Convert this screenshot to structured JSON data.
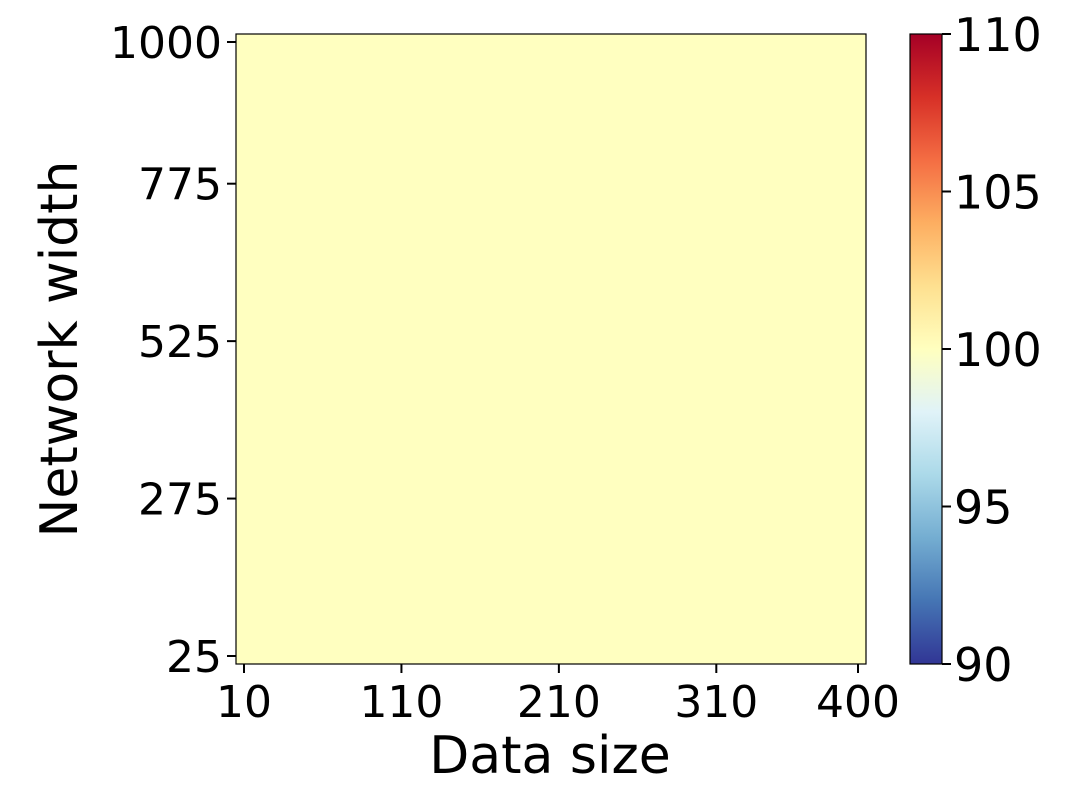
{
  "chart_data": {
    "type": "heatmap",
    "title": "",
    "xlabel": "Data size",
    "ylabel": "Network width",
    "x_ticks": [
      10,
      110,
      210,
      310,
      400
    ],
    "y_ticks": [
      25,
      275,
      525,
      775,
      1000
    ],
    "xlim": [
      10,
      400
    ],
    "ylim": [
      25,
      1000
    ],
    "values": [
      [
        100
      ]
    ],
    "colorbar": {
      "min": 90,
      "max": 110,
      "ticks": [
        90,
        95,
        100,
        105,
        110
      ],
      "colormap": "RdYlBu_r",
      "stops": [
        "#313695",
        "#4575b4",
        "#74add1",
        "#abd9e9",
        "#e0f3f8",
        "#ffffbf",
        "#fee090",
        "#fdae61",
        "#f46d43",
        "#d73027",
        "#a50026"
      ]
    },
    "fill_color": "#ffffc0",
    "grid": false
  }
}
